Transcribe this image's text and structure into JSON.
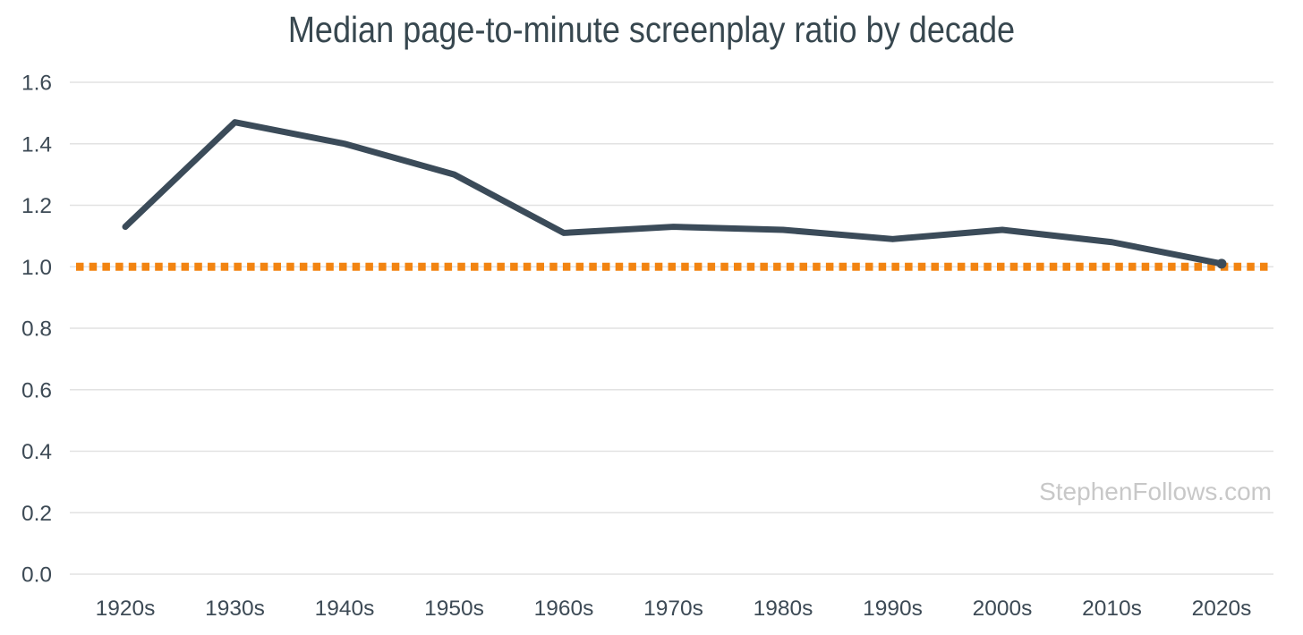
{
  "title": "Median page-to-minute screenplay ratio by decade",
  "watermark": "StephenFollows.com",
  "colors": {
    "background": "#ffffff",
    "title_text": "#37474f",
    "axis_text": "#3d4a55",
    "grid": "#e2e2e2",
    "line": "#3b4b59",
    "reference": "#f28411",
    "watermark": "#c8c8c8"
  },
  "chart_data": {
    "type": "line",
    "title": "Median page-to-minute screenplay ratio by decade",
    "xlabel": "",
    "ylabel": "",
    "categories": [
      "1920s",
      "1930s",
      "1940s",
      "1950s",
      "1960s",
      "1970s",
      "1980s",
      "1990s",
      "2000s",
      "2010s",
      "2020s"
    ],
    "values": [
      1.13,
      1.47,
      1.4,
      1.3,
      1.11,
      1.13,
      1.12,
      1.09,
      1.12,
      1.08,
      1.01
    ],
    "ylim": [
      0.0,
      1.6
    ],
    "yticks": [
      0.0,
      0.2,
      0.4,
      0.6,
      0.8,
      1.0,
      1.2,
      1.4,
      1.6
    ],
    "ytick_labels": [
      "0.0",
      "0.2",
      "0.4",
      "0.6",
      "0.8",
      "1.0",
      "1.2",
      "1.4",
      "1.6"
    ],
    "grid": "horizontal",
    "legend": "none",
    "reference_line": {
      "value": 1.0,
      "style": "dotted",
      "color": "#f28411"
    },
    "end_marker": "dot-on-last-point",
    "watermark": "StephenFollows.com"
  }
}
